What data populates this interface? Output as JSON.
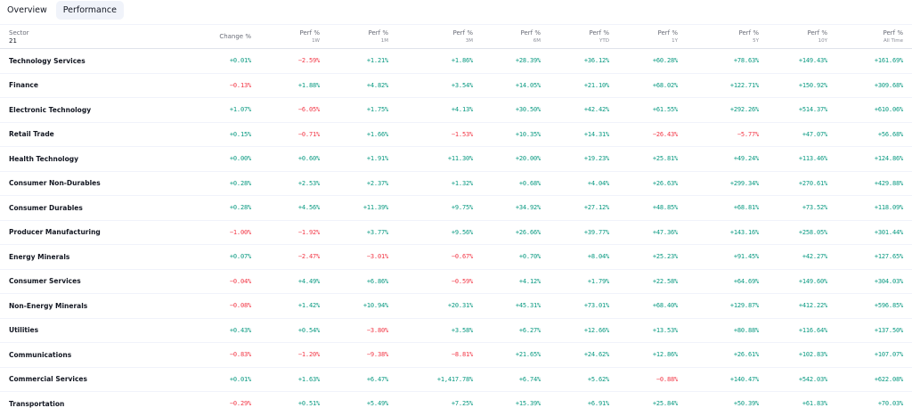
{
  "tabs": [
    {
      "label": "Overview",
      "active": false
    },
    {
      "label": "Performance",
      "active": true
    }
  ],
  "colors": {
    "positive": "#089981",
    "negative": "#f23645",
    "active_tab_bg": "#f0f3fa"
  },
  "table": {
    "header": {
      "sector": {
        "label": "Sector",
        "count": "21"
      },
      "columns": [
        {
          "label": "Change %",
          "sub": ""
        },
        {
          "label": "Perf %",
          "sub": "1W"
        },
        {
          "label": "Perf %",
          "sub": "1M"
        },
        {
          "label": "Perf %",
          "sub": "3M"
        },
        {
          "label": "Perf %",
          "sub": "6M"
        },
        {
          "label": "Perf %",
          "sub": "YTD"
        },
        {
          "label": "Perf %",
          "sub": "1Y"
        },
        {
          "label": "Perf %",
          "sub": "5Y"
        },
        {
          "label": "Perf %",
          "sub": "10Y"
        },
        {
          "label": "Perf %",
          "sub": "All Time"
        }
      ]
    },
    "rows": [
      {
        "name": "Technology Services",
        "values": [
          "+0.01%",
          "−2.59%",
          "+1.21%",
          "+1.86%",
          "+28.39%",
          "+36.12%",
          "+60.28%",
          "+78.63%",
          "+149.43%",
          "+161.69%"
        ]
      },
      {
        "name": "Finance",
        "values": [
          "−0.13%",
          "+1.88%",
          "+4.82%",
          "+3.54%",
          "+14.05%",
          "+21.10%",
          "+68.02%",
          "+122.71%",
          "+150.92%",
          "+309.68%"
        ]
      },
      {
        "name": "Electronic Technology",
        "values": [
          "+1.07%",
          "−6.05%",
          "+1.75%",
          "+4.13%",
          "+30.50%",
          "+42.42%",
          "+61.55%",
          "+292.26%",
          "+514.37%",
          "+610.06%"
        ]
      },
      {
        "name": "Retail Trade",
        "values": [
          "+0.15%",
          "−0.71%",
          "+1.66%",
          "−1.53%",
          "+10.35%",
          "+14.31%",
          "−26.43%",
          "−5.77%",
          "+47.07%",
          "+56.68%"
        ]
      },
      {
        "name": "Health Technology",
        "values": [
          "+0.00%",
          "+0.60%",
          "+1.91%",
          "+11.30%",
          "+20.00%",
          "+19.23%",
          "+25.81%",
          "+49.24%",
          "+113.46%",
          "+124.86%"
        ]
      },
      {
        "name": "Consumer Non-Durables",
        "values": [
          "+0.28%",
          "+2.53%",
          "+2.37%",
          "+1.32%",
          "+0.68%",
          "+4.04%",
          "+26.63%",
          "+299.34%",
          "+270.61%",
          "+429.88%"
        ]
      },
      {
        "name": "Consumer Durables",
        "values": [
          "+0.28%",
          "+4.56%",
          "+11.39%",
          "+9.75%",
          "+34.92%",
          "+27.12%",
          "+48.85%",
          "+68.81%",
          "+73.52%",
          "+118.09%"
        ]
      },
      {
        "name": "Producer Manufacturing",
        "values": [
          "−1.00%",
          "−1.92%",
          "+3.77%",
          "+9.56%",
          "+26.66%",
          "+39.77%",
          "+47.36%",
          "+143.16%",
          "+258.05%",
          "+301.44%"
        ]
      },
      {
        "name": "Energy Minerals",
        "values": [
          "+0.07%",
          "−2.47%",
          "−3.01%",
          "−0.67%",
          "+0.70%",
          "+8.04%",
          "+25.23%",
          "+91.45%",
          "+42.27%",
          "+127.65%"
        ]
      },
      {
        "name": "Consumer Services",
        "values": [
          "−0.04%",
          "+4.49%",
          "+6.86%",
          "−0.59%",
          "+4.12%",
          "+1.79%",
          "+22.58%",
          "+64.69%",
          "+149.60%",
          "+304.03%"
        ]
      },
      {
        "name": "Non-Energy Minerals",
        "values": [
          "−0.08%",
          "+1.42%",
          "+10.94%",
          "+20.31%",
          "+45.31%",
          "+73.01%",
          "+68.40%",
          "+129.87%",
          "+412.22%",
          "+596.85%"
        ]
      },
      {
        "name": "Utilities",
        "values": [
          "+0.43%",
          "+0.54%",
          "−3.80%",
          "+3.58%",
          "+6.27%",
          "+12.66%",
          "+13.53%",
          "+80.88%",
          "+116.64%",
          "+137.50%"
        ]
      },
      {
        "name": "Communications",
        "values": [
          "−0.83%",
          "−1.20%",
          "−9.38%",
          "−8.81%",
          "+21.65%",
          "+24.62%",
          "+12.86%",
          "+26.61%",
          "+102.83%",
          "+107.07%"
        ]
      },
      {
        "name": "Commercial Services",
        "values": [
          "+0.01%",
          "+1.63%",
          "+6.47%",
          "+1,417.78%",
          "+6.74%",
          "+5.62%",
          "−0.88%",
          "+140.47%",
          "+542.03%",
          "+622.08%"
        ]
      },
      {
        "name": "Transportation",
        "values": [
          "−0.29%",
          "+0.51%",
          "+5.49%",
          "+7.25%",
          "+15.39%",
          "+6.91%",
          "+25.84%",
          "+50.39%",
          "+61.83%",
          "+70.03%"
        ]
      }
    ]
  }
}
